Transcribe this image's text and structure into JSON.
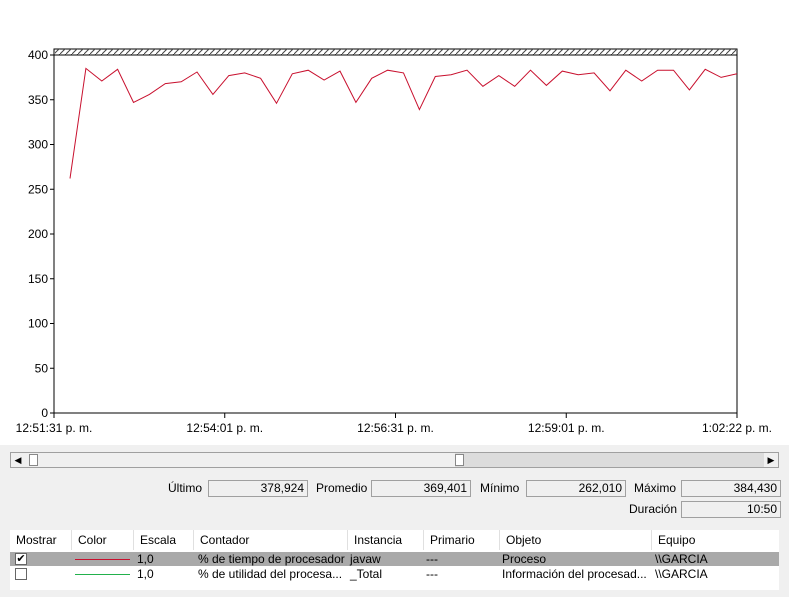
{
  "chart_data": {
    "type": "line",
    "x_ticks": [
      "12:51:31 p. m.",
      "12:54:01 p. m.",
      "12:56:31 p. m.",
      "12:59:01 p. m.",
      "1:02:22 p. m."
    ],
    "y_ticks": [
      "0",
      "50",
      "100",
      "150",
      "200",
      "250",
      "300",
      "350",
      "400"
    ],
    "ylim": [
      0,
      400
    ],
    "grid": false,
    "series": [
      {
        "name": "% de tiempo de procesador",
        "color": "#c8102e",
        "values": [
          262,
          385,
          371,
          384,
          347,
          356,
          368,
          370,
          381,
          356,
          377,
          380,
          374,
          346,
          379,
          383,
          372,
          382,
          347,
          374,
          383,
          380,
          339,
          376,
          378,
          383,
          365,
          377,
          365,
          383,
          366,
          382,
          378,
          380,
          360,
          383,
          371,
          383,
          383,
          361,
          384,
          375,
          379
        ]
      }
    ]
  },
  "scrollbar": {
    "left_arrow": "◀",
    "right_arrow": "▶"
  },
  "stats": {
    "ultimo_label": "Último",
    "ultimo_value": "378,924",
    "promedio_label": "Promedio",
    "promedio_value": "369,401",
    "minimo_label": "Mínimo",
    "minimo_value": "262,010",
    "maximo_label": "Máximo",
    "maximo_value": "384,430",
    "duracion_label": "Duración",
    "duracion_value": "10:50"
  },
  "legend": {
    "headers": [
      "Mostrar",
      "Color",
      "Escala",
      "Contador",
      "Instancia",
      "Primario",
      "Objeto",
      "Equipo"
    ],
    "rows": [
      {
        "checked": "✔",
        "color": "#c8102e",
        "escala": "1,0",
        "contador": "% de tiempo de procesador",
        "instancia": "javaw",
        "primario": "---",
        "objeto": "Proceso",
        "equipo": "\\\\GARCIA"
      },
      {
        "checked": "",
        "color": "#22b14c",
        "escala": "1,0",
        "contador": "% de utilidad del procesa...",
        "instancia": "_Total",
        "primario": "---",
        "objeto": "Información del procesad...",
        "equipo": "\\\\GARCIA"
      }
    ]
  }
}
